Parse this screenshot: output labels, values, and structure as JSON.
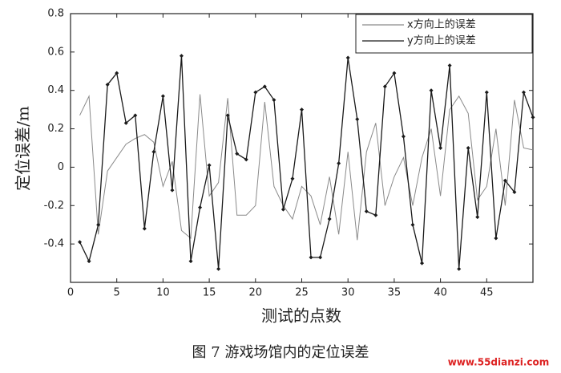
{
  "chart_data": {
    "type": "line",
    "caption": "图 7  游戏场馆内的定位误差",
    "xlabel": "测试的点数",
    "ylabel": "定位误差/m",
    "watermark": "www.55dianzi.com",
    "x": [
      1,
      2,
      3,
      4,
      5,
      6,
      7,
      8,
      9,
      10,
      11,
      12,
      13,
      14,
      15,
      16,
      17,
      18,
      19,
      20,
      21,
      22,
      23,
      24,
      25,
      26,
      27,
      28,
      29,
      30,
      31,
      32,
      33,
      34,
      35,
      36,
      37,
      38,
      39,
      40,
      41,
      42,
      43,
      44,
      45,
      46,
      47,
      48,
      49,
      50
    ],
    "series": [
      {
        "name": "x方向上的误差",
        "color": "#8a8a8a",
        "marker": false,
        "values": [
          0.27,
          0.37,
          -0.35,
          -0.02,
          0.05,
          0.12,
          0.15,
          0.17,
          0.13,
          -0.1,
          0.03,
          -0.33,
          -0.37,
          0.38,
          -0.15,
          -0.08,
          0.36,
          -0.25,
          -0.25,
          -0.2,
          0.34,
          -0.1,
          -0.2,
          -0.27,
          -0.1,
          -0.15,
          -0.3,
          -0.05,
          -0.35,
          0.08,
          -0.38,
          0.08,
          0.23,
          -0.2,
          -0.05,
          0.05,
          -0.2,
          0.05,
          0.2,
          -0.15,
          0.3,
          0.37,
          0.28,
          -0.17,
          -0.1,
          0.2,
          -0.2,
          0.35,
          0.1,
          0.09
        ]
      },
      {
        "name": "y方向上的误差",
        "color": "#1a1a1a",
        "marker": true,
        "values": [
          -0.39,
          -0.49,
          -0.3,
          0.43,
          0.49,
          0.23,
          0.27,
          -0.32,
          0.08,
          0.37,
          -0.12,
          0.58,
          -0.49,
          -0.21,
          0.01,
          -0.53,
          0.27,
          0.07,
          0.04,
          0.39,
          0.42,
          0.35,
          -0.22,
          -0.06,
          0.3,
          -0.47,
          -0.47,
          -0.27,
          0.02,
          0.57,
          0.25,
          -0.23,
          -0.25,
          0.42,
          0.49,
          0.16,
          -0.3,
          -0.5,
          0.4,
          0.1,
          0.53,
          -0.53,
          0.1,
          -0.26,
          0.39,
          -0.37,
          -0.07,
          -0.13,
          0.39,
          0.26
        ]
      }
    ],
    "xlim": [
      0,
      50
    ],
    "xticks": [
      0,
      5,
      10,
      15,
      20,
      25,
      30,
      35,
      40,
      45
    ],
    "ylim": [
      -0.6,
      0.8
    ],
    "yticks": [
      {
        "value": -0.4,
        "label": "-0.4"
      },
      {
        "value": -0.2,
        "label": "-0.2"
      },
      0,
      {
        "value": 0.2,
        "label": "0.2"
      },
      {
        "value": 0.4,
        "label": "0.4"
      },
      {
        "value": 0.6,
        "label": "0.6"
      },
      {
        "value": 0.8,
        "label": "0.8"
      }
    ],
    "grid": false,
    "legend": "upper right"
  }
}
